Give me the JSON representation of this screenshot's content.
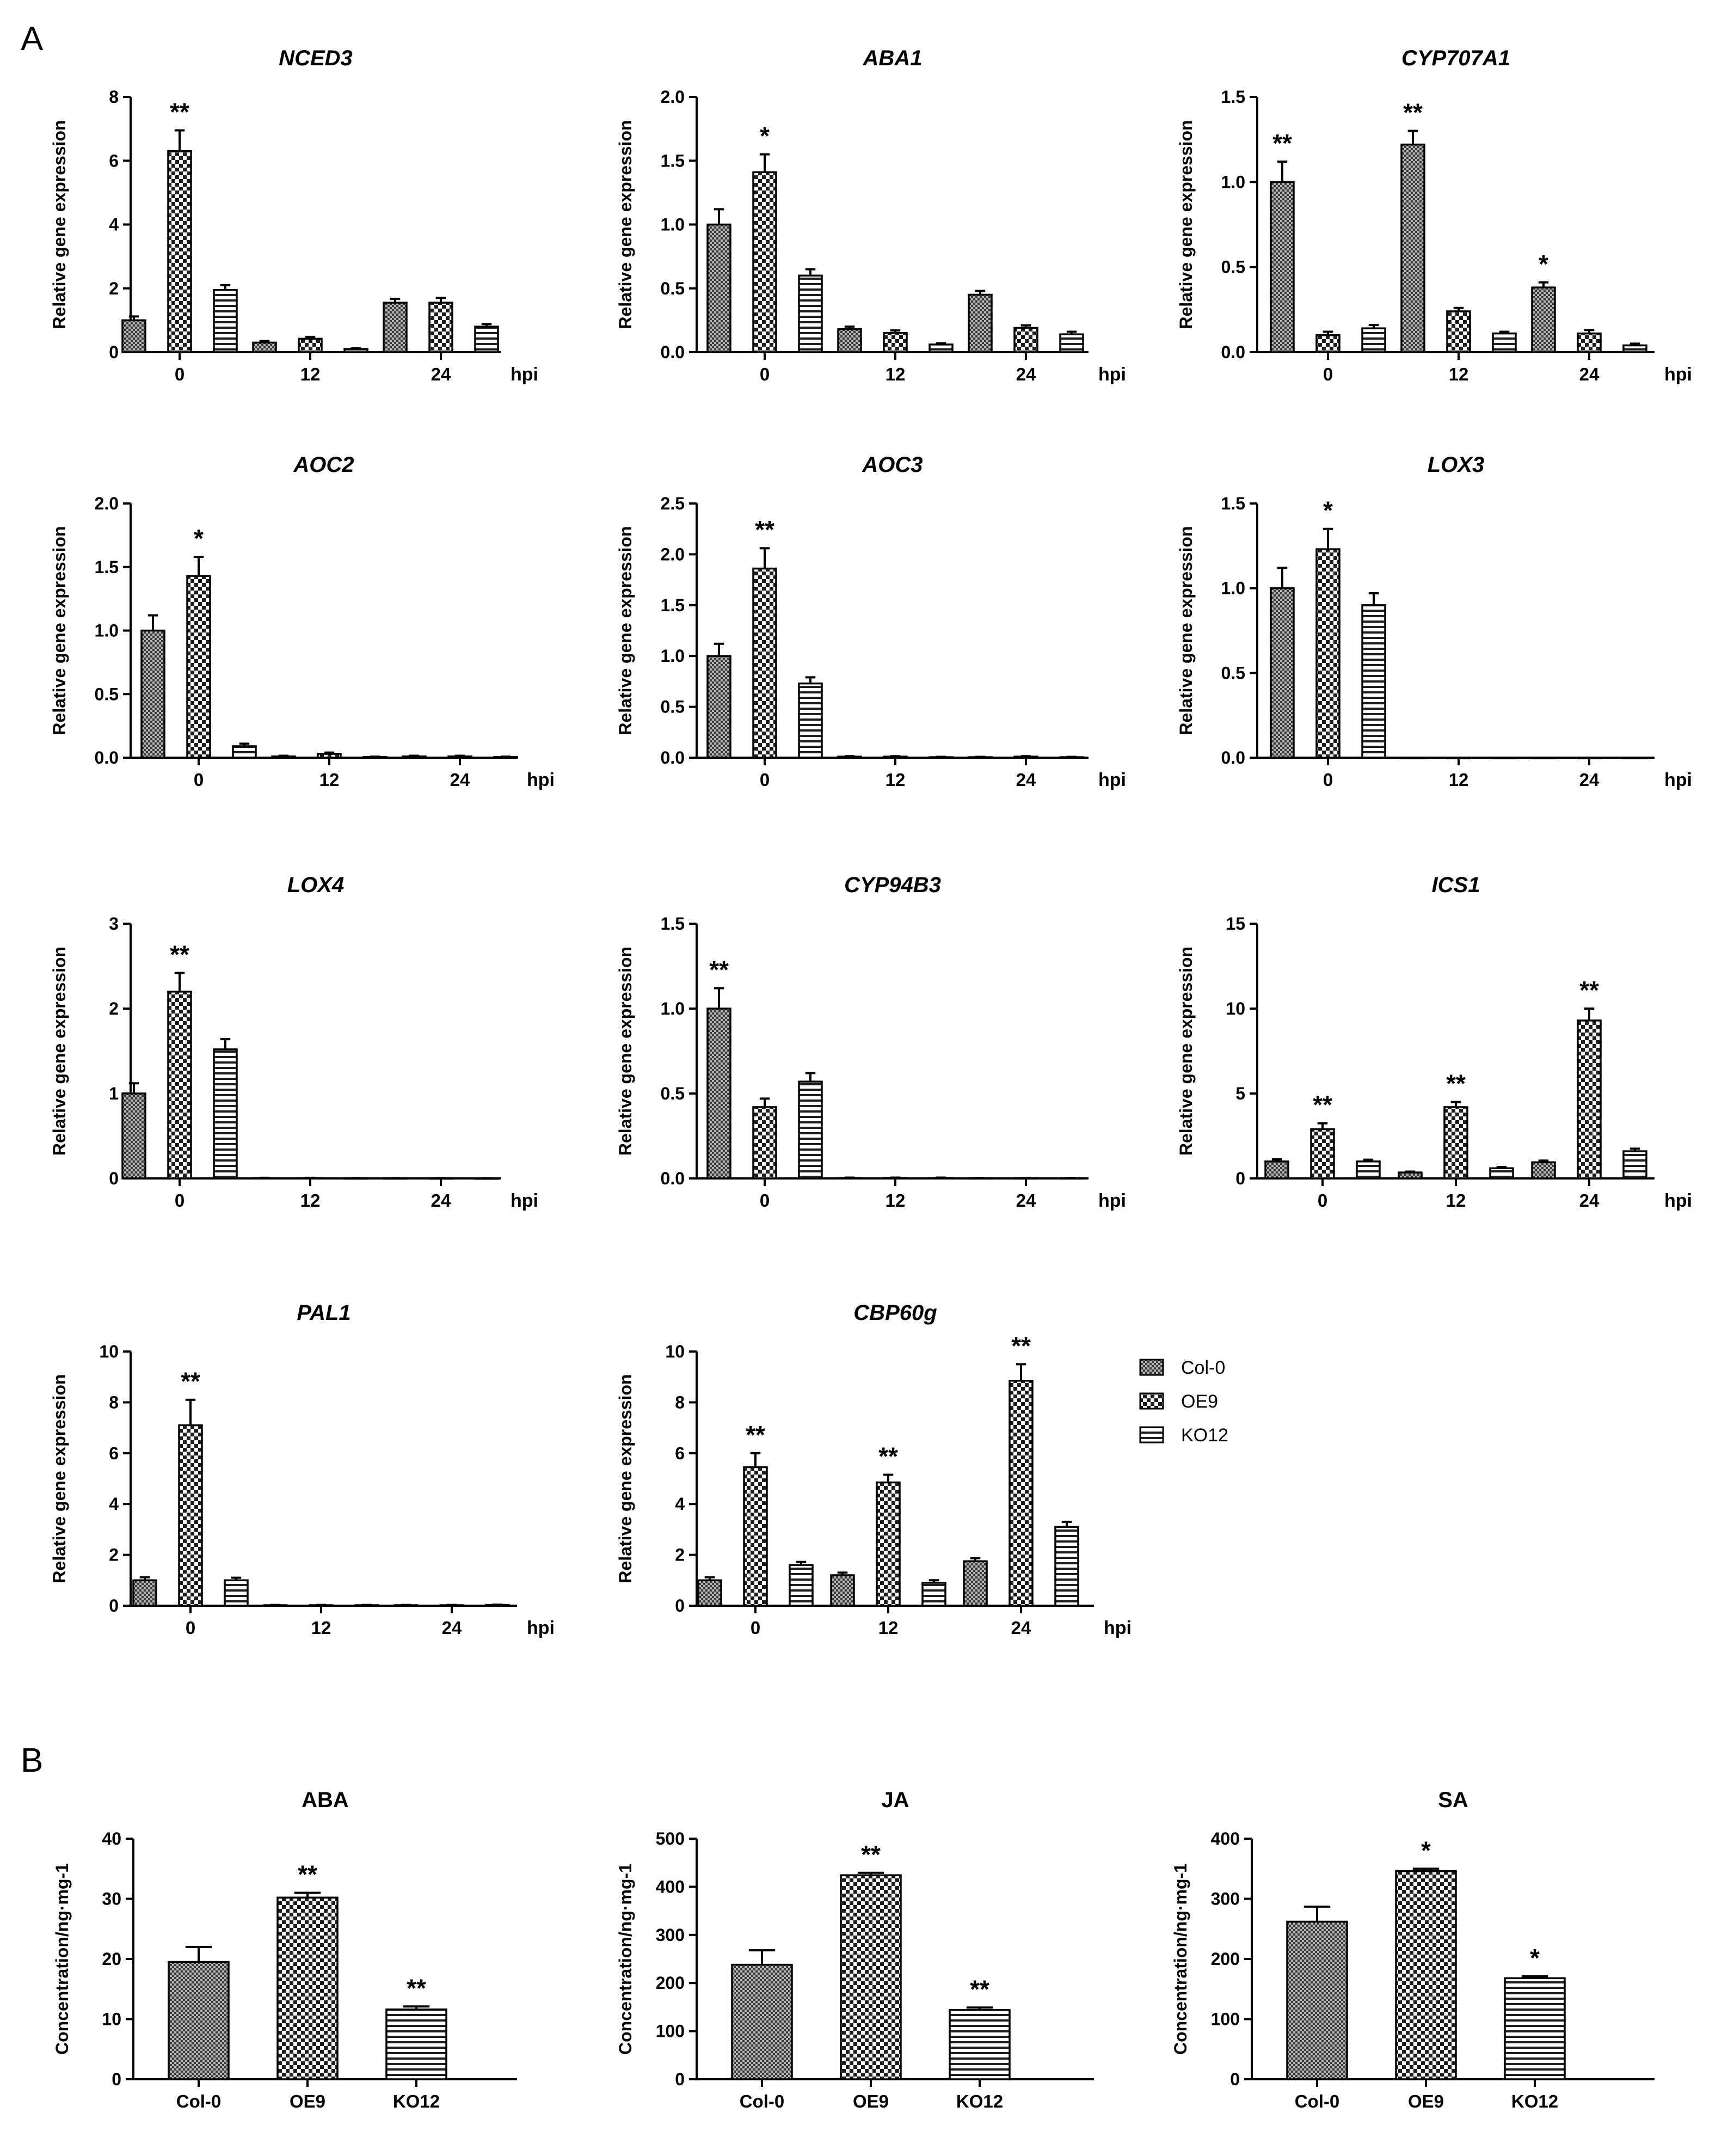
{
  "figure": {
    "panel_labels": [
      "A",
      "B"
    ],
    "legend": [
      {
        "name": "Col-0",
        "pattern": "dense-check"
      },
      {
        "name": "OE9",
        "pattern": "large-check"
      },
      {
        "name": "KO12",
        "pattern": "horizontal-stripes"
      }
    ],
    "colors": {
      "ink": "#000000",
      "fill_light": "#ffffff",
      "fill_mid": "#9a9a9a",
      "fill_dark": "#2a2a2a"
    }
  },
  "chart_data": [
    {
      "type": "bar",
      "title": "NCED3",
      "xlabel": "hpi",
      "ylabel": "Relative gene expression",
      "categories": [
        "0",
        "12",
        "24"
      ],
      "ylim": [
        0,
        8
      ],
      "yticks": [
        "0",
        "2",
        "4",
        "6",
        "8"
      ],
      "series": [
        {
          "name": "Col-0",
          "values": [
            1.0,
            0.3,
            1.55
          ],
          "errors": [
            0.12,
            0.05,
            0.12
          ]
        },
        {
          "name": "OE9",
          "values": [
            6.3,
            0.42,
            1.55
          ],
          "errors": [
            0.65,
            0.06,
            0.15
          ]
        },
        {
          "name": "KO12",
          "values": [
            1.95,
            0.1,
            0.8
          ],
          "errors": [
            0.15,
            0.02,
            0.08
          ]
        }
      ],
      "annotations": [
        {
          "category": 0,
          "series": 1,
          "text": "**"
        }
      ]
    },
    {
      "type": "bar",
      "title": "ABA1",
      "xlabel": "hpi",
      "ylabel": "Relative gene expression",
      "categories": [
        "0",
        "12",
        "24"
      ],
      "ylim": [
        0,
        2.0
      ],
      "yticks": [
        "0.0",
        "0.5",
        "1.0",
        "1.5",
        "2.0"
      ],
      "series": [
        {
          "name": "Col-0",
          "values": [
            1.0,
            0.18,
            0.45
          ],
          "errors": [
            0.12,
            0.02,
            0.03
          ]
        },
        {
          "name": "OE9",
          "values": [
            1.41,
            0.15,
            0.19
          ],
          "errors": [
            0.14,
            0.02,
            0.02
          ]
        },
        {
          "name": "KO12",
          "values": [
            0.6,
            0.06,
            0.14
          ],
          "errors": [
            0.05,
            0.01,
            0.02
          ]
        }
      ],
      "annotations": [
        {
          "category": 0,
          "series": 1,
          "text": "*"
        }
      ]
    },
    {
      "type": "bar",
      "title": "CYP707A1",
      "xlabel": "hpi",
      "ylabel": "Relative gene expression",
      "categories": [
        "0",
        "12",
        "24"
      ],
      "ylim": [
        0,
        1.5
      ],
      "yticks": [
        "0.0",
        "0.5",
        "1.0",
        "1.5"
      ],
      "series": [
        {
          "name": "Col-0",
          "values": [
            1.0,
            1.22,
            0.38
          ],
          "errors": [
            0.12,
            0.08,
            0.03
          ]
        },
        {
          "name": "OE9",
          "values": [
            0.1,
            0.24,
            0.11
          ],
          "errors": [
            0.02,
            0.02,
            0.02
          ]
        },
        {
          "name": "KO12",
          "values": [
            0.14,
            0.11,
            0.04
          ],
          "errors": [
            0.02,
            0.01,
            0.01
          ]
        }
      ],
      "annotations": [
        {
          "category": 0,
          "series": 0,
          "text": "**"
        },
        {
          "category": 1,
          "series": 0,
          "text": "**"
        },
        {
          "category": 2,
          "series": 0,
          "text": "*"
        }
      ]
    },
    {
      "type": "bar",
      "title": "AOC2",
      "xlabel": "hpi",
      "ylabel": "Relative gene expression",
      "categories": [
        "0",
        "12",
        "24"
      ],
      "ylim": [
        0,
        2.0
      ],
      "yticks": [
        "0.0",
        "0.5",
        "1.0",
        "1.5",
        "2.0"
      ],
      "series": [
        {
          "name": "Col-0",
          "values": [
            1.0,
            0.01,
            0.01
          ],
          "errors": [
            0.12,
            0.005,
            0.005
          ]
        },
        {
          "name": "OE9",
          "values": [
            1.43,
            0.03,
            0.01
          ],
          "errors": [
            0.15,
            0.01,
            0.005
          ]
        },
        {
          "name": "KO12",
          "values": [
            0.09,
            0.005,
            0.005
          ],
          "errors": [
            0.02,
            0.003,
            0.003
          ]
        }
      ],
      "annotations": [
        {
          "category": 0,
          "series": 1,
          "text": "*"
        }
      ]
    },
    {
      "type": "bar",
      "title": "AOC3",
      "xlabel": "hpi",
      "ylabel": "Relative gene expression",
      "categories": [
        "0",
        "12",
        "24"
      ],
      "ylim": [
        0,
        2.5
      ],
      "yticks": [
        "0.0",
        "0.5",
        "1.0",
        "1.5",
        "2.0",
        "2.5"
      ],
      "series": [
        {
          "name": "Col-0",
          "values": [
            1.0,
            0.01,
            0.005
          ],
          "errors": [
            0.12,
            0.005,
            0.003
          ]
        },
        {
          "name": "OE9",
          "values": [
            1.86,
            0.01,
            0.01
          ],
          "errors": [
            0.2,
            0.005,
            0.005
          ]
        },
        {
          "name": "KO12",
          "values": [
            0.73,
            0.005,
            0.005
          ],
          "errors": [
            0.06,
            0.003,
            0.003
          ]
        }
      ],
      "annotations": [
        {
          "category": 0,
          "series": 1,
          "text": "**"
        }
      ]
    },
    {
      "type": "bar",
      "title": "LOX3",
      "xlabel": "hpi",
      "ylabel": "Relative gene expression",
      "categories": [
        "0",
        "12",
        "24"
      ],
      "ylim": [
        0,
        1.5
      ],
      "yticks": [
        "0.0",
        "0.5",
        "1.0",
        "1.5"
      ],
      "series": [
        {
          "name": "Col-0",
          "values": [
            1.0,
            0.0,
            0.0
          ],
          "errors": [
            0.12,
            0.0,
            0.0
          ]
        },
        {
          "name": "OE9",
          "values": [
            1.23,
            0.0,
            0.0
          ],
          "errors": [
            0.12,
            0.0,
            0.0
          ]
        },
        {
          "name": "KO12",
          "values": [
            0.9,
            0.0,
            0.0
          ],
          "errors": [
            0.07,
            0.0,
            0.0
          ]
        }
      ],
      "annotations": [
        {
          "category": 0,
          "series": 1,
          "text": "*"
        }
      ]
    },
    {
      "type": "bar",
      "title": "LOX4",
      "xlabel": "hpi",
      "ylabel": "Relative gene expression",
      "categories": [
        "0",
        "12",
        "24"
      ],
      "ylim": [
        0,
        3
      ],
      "yticks": [
        "0",
        "1",
        "2",
        "3"
      ],
      "series": [
        {
          "name": "Col-0",
          "values": [
            1.0,
            0.005,
            0.003
          ],
          "errors": [
            0.12,
            0.002,
            0.002
          ]
        },
        {
          "name": "OE9",
          "values": [
            2.2,
            0.005,
            0.003
          ],
          "errors": [
            0.22,
            0.002,
            0.002
          ]
        },
        {
          "name": "KO12",
          "values": [
            1.52,
            0.003,
            0.002
          ],
          "errors": [
            0.12,
            0.002,
            0.002
          ]
        }
      ],
      "annotations": [
        {
          "category": 0,
          "series": 1,
          "text": "**"
        }
      ]
    },
    {
      "type": "bar",
      "title": "CYP94B3",
      "xlabel": "hpi",
      "ylabel": "Relative gene expression",
      "categories": [
        "0",
        "12",
        "24"
      ],
      "ylim": [
        0,
        1.5
      ],
      "yticks": [
        "0.0",
        "0.5",
        "1.0",
        "1.5"
      ],
      "series": [
        {
          "name": "Col-0",
          "values": [
            1.0,
            0.003,
            0.002
          ],
          "errors": [
            0.12,
            0.002,
            0.001
          ]
        },
        {
          "name": "OE9",
          "values": [
            0.42,
            0.003,
            0.002
          ],
          "errors": [
            0.05,
            0.002,
            0.001
          ]
        },
        {
          "name": "KO12",
          "values": [
            0.57,
            0.003,
            0.002
          ],
          "errors": [
            0.05,
            0.002,
            0.001
          ]
        }
      ],
      "annotations": [
        {
          "category": 0,
          "series": 0,
          "text": "**"
        }
      ]
    },
    {
      "type": "bar",
      "title": "ICS1",
      "xlabel": "hpi",
      "ylabel": "Relative gene expression",
      "categories": [
        "0",
        "12",
        "24"
      ],
      "ylim": [
        0,
        15
      ],
      "yticks": [
        "0",
        "5",
        "10",
        "15"
      ],
      "series": [
        {
          "name": "Col-0",
          "values": [
            1.0,
            0.35,
            0.95
          ],
          "errors": [
            0.12,
            0.05,
            0.1
          ]
        },
        {
          "name": "OE9",
          "values": [
            2.9,
            4.2,
            9.3
          ],
          "errors": [
            0.35,
            0.3,
            0.7
          ]
        },
        {
          "name": "KO12",
          "values": [
            1.0,
            0.6,
            1.6
          ],
          "errors": [
            0.1,
            0.07,
            0.15
          ]
        }
      ],
      "annotations": [
        {
          "category": 0,
          "series": 1,
          "text": "**"
        },
        {
          "category": 1,
          "series": 1,
          "text": "**"
        },
        {
          "category": 2,
          "series": 1,
          "text": "**"
        }
      ]
    },
    {
      "type": "bar",
      "title": "PAL1",
      "xlabel": "hpi",
      "ylabel": "Relative gene expression",
      "categories": [
        "0",
        "12",
        "24"
      ],
      "ylim": [
        0,
        10
      ],
      "yticks": [
        "0",
        "2",
        "4",
        "6",
        "8",
        "10"
      ],
      "series": [
        {
          "name": "Col-0",
          "values": [
            1.0,
            0.02,
            0.02
          ],
          "errors": [
            0.12,
            0.01,
            0.01
          ]
        },
        {
          "name": "OE9",
          "values": [
            7.1,
            0.02,
            0.02
          ],
          "errors": [
            1.0,
            0.01,
            0.01
          ]
        },
        {
          "name": "KO12",
          "values": [
            1.0,
            0.02,
            0.03
          ],
          "errors": [
            0.1,
            0.01,
            0.01
          ]
        }
      ],
      "annotations": [
        {
          "category": 0,
          "series": 1,
          "text": "**"
        }
      ]
    },
    {
      "type": "bar",
      "title": "CBP60g",
      "xlabel": "hpi",
      "ylabel": "Relative gene expression",
      "categories": [
        "0",
        "12",
        "24"
      ],
      "ylim": [
        0,
        10
      ],
      "yticks": [
        "0",
        "2",
        "4",
        "6",
        "8",
        "10"
      ],
      "series": [
        {
          "name": "Col-0",
          "values": [
            1.0,
            1.2,
            1.75
          ],
          "errors": [
            0.12,
            0.1,
            0.12
          ]
        },
        {
          "name": "OE9",
          "values": [
            5.45,
            4.85,
            8.85
          ],
          "errors": [
            0.55,
            0.3,
            0.65
          ]
        },
        {
          "name": "KO12",
          "values": [
            1.6,
            0.9,
            3.1
          ],
          "errors": [
            0.12,
            0.1,
            0.2
          ]
        }
      ],
      "annotations": [
        {
          "category": 0,
          "series": 1,
          "text": "**"
        },
        {
          "category": 1,
          "series": 1,
          "text": "**"
        },
        {
          "category": 2,
          "series": 1,
          "text": "**"
        }
      ]
    },
    {
      "type": "bar",
      "title": "ABA",
      "xlabel": "",
      "ylabel": "Concentration/ng·mg-1",
      "categories": [
        "Col-0",
        "OE9",
        "KO12"
      ],
      "ylim": [
        0,
        40
      ],
      "yticks": [
        "0",
        "10",
        "20",
        "30",
        "40"
      ],
      "values": [
        19.5,
        30.2,
        11.6
      ],
      "errors": [
        2.5,
        0.8,
        0.5
      ],
      "annotations": [
        {
          "index": 1,
          "text": "**"
        },
        {
          "index": 2,
          "text": "**"
        }
      ]
    },
    {
      "type": "bar",
      "title": "JA",
      "xlabel": "",
      "ylabel": "Concentration/ng·mg-1",
      "categories": [
        "Col-0",
        "OE9",
        "KO12"
      ],
      "ylim": [
        0,
        500
      ],
      "yticks": [
        "0",
        "100",
        "200",
        "300",
        "400",
        "500"
      ],
      "values": [
        238,
        424,
        144
      ],
      "errors": [
        30,
        5,
        5
      ],
      "annotations": [
        {
          "index": 1,
          "text": "**"
        },
        {
          "index": 2,
          "text": "**"
        }
      ]
    },
    {
      "type": "bar",
      "title": "SA",
      "xlabel": "",
      "ylabel": "Concentration/ng·mg-1",
      "categories": [
        "Col-0",
        "OE9",
        "KO12"
      ],
      "ylim": [
        0,
        400
      ],
      "yticks": [
        "0",
        "100",
        "200",
        "300",
        "400"
      ],
      "values": [
        262,
        346,
        168
      ],
      "errors": [
        25,
        4,
        3
      ],
      "annotations": [
        {
          "index": 1,
          "text": "*"
        },
        {
          "index": 2,
          "text": "*"
        }
      ]
    }
  ]
}
